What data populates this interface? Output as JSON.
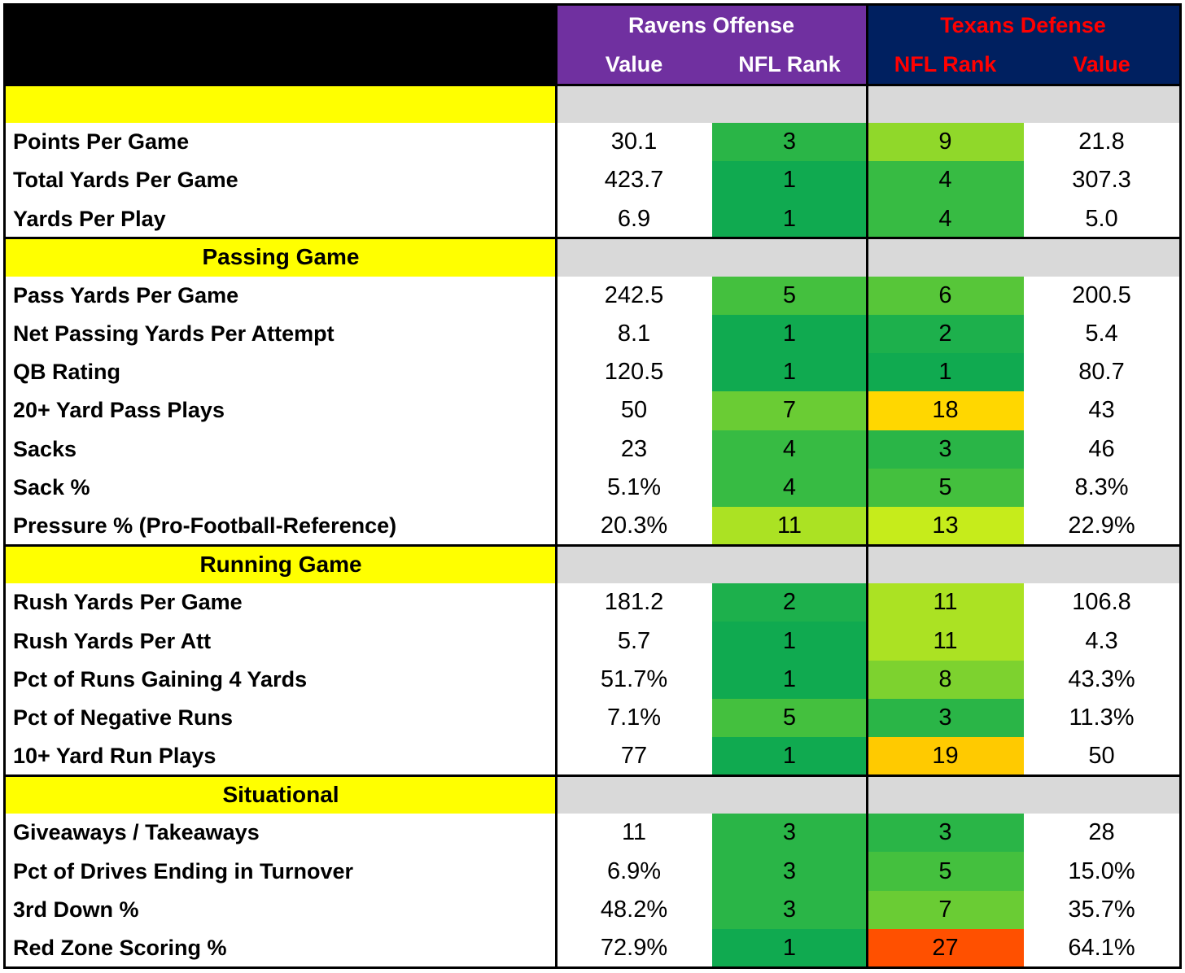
{
  "header": {
    "offense": "Ravens Offense",
    "defense": "Texans Defense",
    "columns": [
      "Value",
      "NFL Rank",
      "NFL Rank",
      "Value"
    ]
  },
  "sections": [
    {
      "rows": [
        {
          "label": "Points Per Game",
          "off_value": "30.1",
          "off_rank": 3,
          "def_rank": 9,
          "def_value": "21.8"
        },
        {
          "label": "Total Yards Per Game",
          "off_value": "423.7",
          "off_rank": 1,
          "def_rank": 4,
          "def_value": "307.3"
        },
        {
          "label": "Yards Per Play",
          "off_value": "6.9",
          "off_rank": 1,
          "def_rank": 4,
          "def_value": "5.0"
        }
      ]
    },
    {
      "title": "Passing Game",
      "rows": [
        {
          "label": "Pass Yards Per Game",
          "off_value": "242.5",
          "off_rank": 5,
          "def_rank": 6,
          "def_value": "200.5"
        },
        {
          "label": "Net Passing Yards Per Attempt",
          "off_value": "8.1",
          "off_rank": 1,
          "def_rank": 2,
          "def_value": "5.4"
        },
        {
          "label": "QB Rating",
          "off_value": "120.5",
          "off_rank": 1,
          "def_rank": 1,
          "def_value": "80.7"
        },
        {
          "label": "20+ Yard Pass Plays",
          "off_value": "50",
          "off_rank": 7,
          "def_rank": 18,
          "def_value": "43"
        },
        {
          "label": "Sacks",
          "off_value": "23",
          "off_rank": 4,
          "def_rank": 3,
          "def_value": "46"
        },
        {
          "label": "Sack %",
          "off_value": "5.1%",
          "off_rank": 4,
          "def_rank": 5,
          "def_value": "8.3%"
        },
        {
          "label": "Pressure % (Pro-Football-Reference)",
          "off_value": "20.3%",
          "off_rank": 11,
          "def_rank": 13,
          "def_value": "22.9%"
        }
      ]
    },
    {
      "title": "Running Game",
      "rows": [
        {
          "label": "Rush Yards Per Game",
          "off_value": "181.2",
          "off_rank": 2,
          "def_rank": 11,
          "def_value": "106.8"
        },
        {
          "label": "Rush Yards Per Att",
          "off_value": "5.7",
          "off_rank": 1,
          "def_rank": 11,
          "def_value": "4.3"
        },
        {
          "label": "Pct of Runs Gaining 4 Yards",
          "off_value": "51.7%",
          "off_rank": 1,
          "def_rank": 8,
          "def_value": "43.3%"
        },
        {
          "label": "Pct of Negative Runs",
          "off_value": "7.1%",
          "off_rank": 5,
          "def_rank": 3,
          "def_value": "11.3%"
        },
        {
          "label": "10+ Yard Run Plays",
          "off_value": "77",
          "off_rank": 1,
          "def_rank": 19,
          "def_value": "50"
        }
      ]
    },
    {
      "title": "Situational",
      "rows": [
        {
          "label": "Giveaways / Takeaways",
          "off_value": "11",
          "off_rank": 3,
          "def_rank": 3,
          "def_value": "28"
        },
        {
          "label": "Pct of Drives Ending in Turnover",
          "off_value": "6.9%",
          "off_rank": 3,
          "def_rank": 5,
          "def_value": "15.0%"
        },
        {
          "label": "3rd Down %",
          "off_value": "48.2%",
          "off_rank": 3,
          "def_rank": 7,
          "def_value": "35.7%"
        },
        {
          "label": "Red Zone Scoring %",
          "off_value": "72.9%",
          "off_rank": 1,
          "def_rank": 27,
          "def_value": "64.1%"
        }
      ]
    }
  ]
}
